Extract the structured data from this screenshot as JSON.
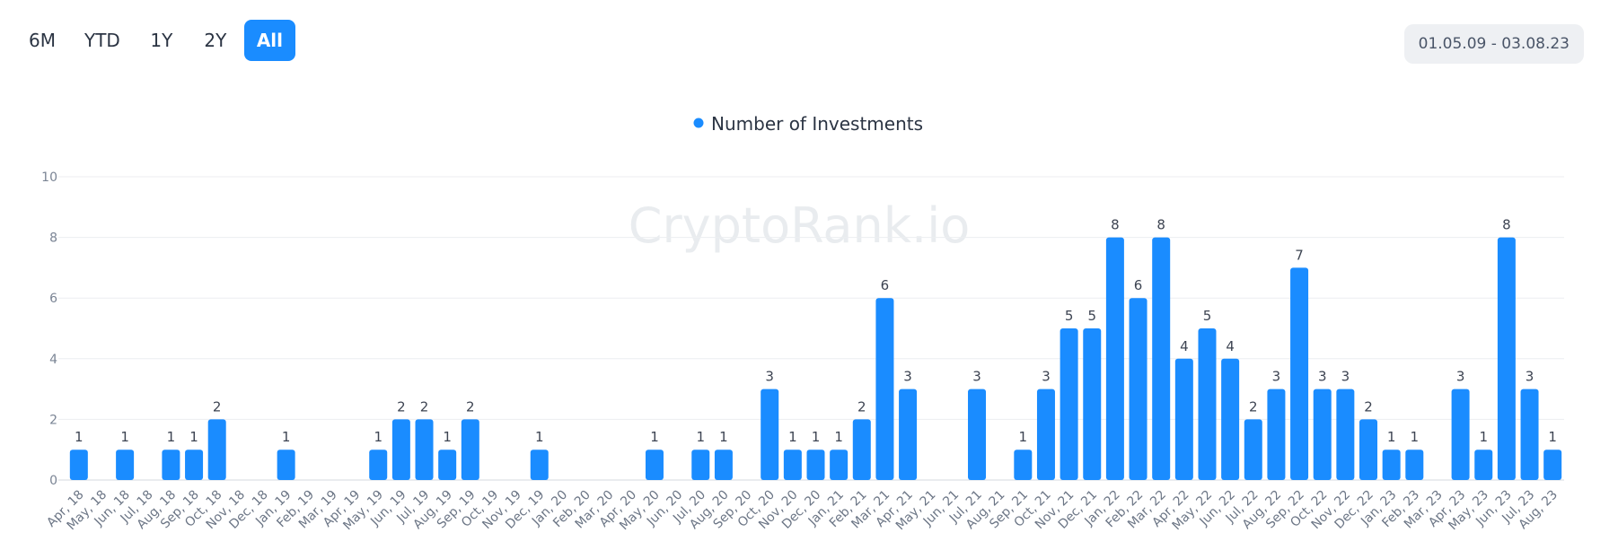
{
  "range_buttons": [
    {
      "label": "6M",
      "active": false
    },
    {
      "label": "YTD",
      "active": false
    },
    {
      "label": "1Y",
      "active": false
    },
    {
      "label": "2Y",
      "active": false
    },
    {
      "label": "All",
      "active": true
    }
  ],
  "date_range": "01.05.09 - 03.08.23",
  "watermark": "CryptoRank.io",
  "colors": {
    "accent": "#1a8cff",
    "bar": "#1a8cff"
  },
  "chart_data": {
    "type": "bar",
    "legend": {
      "label": "Number of Investments",
      "placement": "top-center"
    },
    "ylim": [
      0,
      10
    ],
    "yticks": [
      0,
      2,
      4,
      6,
      8,
      10
    ],
    "grid": true,
    "categories": [
      "Apr, 18",
      "May, 18",
      "Jun, 18",
      "Jul, 18",
      "Aug, 18",
      "Sep, 18",
      "Oct, 18",
      "Nov, 18",
      "Dec, 18",
      "Jan, 19",
      "Feb, 19",
      "Mar, 19",
      "Apr, 19",
      "May, 19",
      "Jun, 19",
      "Jul, 19",
      "Aug, 19",
      "Sep, 19",
      "Oct, 19",
      "Nov, 19",
      "Dec, 19",
      "Jan, 20",
      "Feb, 20",
      "Mar, 20",
      "Apr, 20",
      "May, 20",
      "Jun, 20",
      "Jul, 20",
      "Aug, 20",
      "Sep, 20",
      "Oct, 20",
      "Nov, 20",
      "Dec, 20",
      "Jan, 21",
      "Feb, 21",
      "Mar, 21",
      "Apr, 21",
      "May, 21",
      "Jun, 21",
      "Jul, 21",
      "Aug, 21",
      "Sep, 21",
      "Oct, 21",
      "Nov, 21",
      "Dec, 21",
      "Jan, 22",
      "Feb, 22",
      "Mar, 22",
      "Apr, 22",
      "May, 22",
      "Jun, 22",
      "Jul, 22",
      "Aug, 22",
      "Sep, 22",
      "Oct, 22",
      "Nov, 22",
      "Dec, 22",
      "Jan, 23",
      "Feb, 23",
      "Mar, 23",
      "Apr, 23",
      "May, 23",
      "Jun, 23",
      "Jul, 23",
      "Aug, 23"
    ],
    "values": [
      1,
      0,
      1,
      0,
      1,
      1,
      2,
      0,
      0,
      1,
      0,
      0,
      0,
      1,
      2,
      2,
      1,
      2,
      0,
      0,
      1,
      0,
      0,
      0,
      0,
      1,
      0,
      1,
      1,
      0,
      3,
      1,
      1,
      1,
      2,
      6,
      3,
      0,
      0,
      3,
      0,
      1,
      3,
      5,
      5,
      8,
      6,
      8,
      4,
      5,
      4,
      2,
      3,
      7,
      3,
      3,
      2,
      1,
      1,
      0,
      3,
      1,
      8,
      3,
      1
    ]
  }
}
